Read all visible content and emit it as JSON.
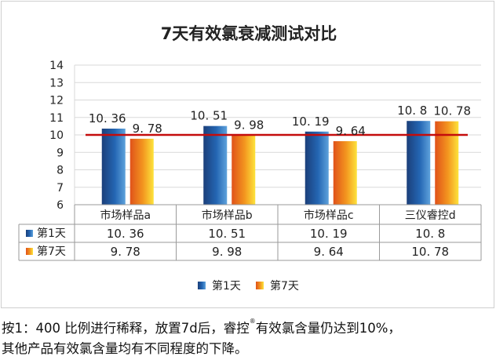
{
  "chart_data": {
    "type": "bar",
    "title": "7天有效氯衰减测试对比",
    "categories": [
      "市场样品a",
      "市场样品b",
      "市场样品c",
      "三仪睿控d"
    ],
    "series": [
      {
        "name": "第1天",
        "values": [
          10.36,
          10.51,
          10.19,
          10.8
        ],
        "labels": [
          "10. 36",
          "10. 51",
          "10. 19",
          "10. 8"
        ]
      },
      {
        "name": "第7天",
        "values": [
          9.78,
          9.98,
          9.64,
          10.78
        ],
        "labels": [
          "9. 78",
          "9. 98",
          "9. 64",
          "10. 78"
        ]
      }
    ],
    "ylim": [
      6,
      14
    ],
    "yticks": [
      "6",
      "7",
      "8",
      "9",
      "10",
      "11",
      "12",
      "13",
      "14"
    ],
    "reference_line": 10,
    "grid": true,
    "legend_position": "bottom",
    "data_table": true
  },
  "colors": {
    "series1": "#1f5fa6",
    "series2": "#f07f1b",
    "reference_line": "#c40c0c"
  },
  "footnote": {
    "line1_pre": "按1：400 比例进行稀释，放置7d后，睿控",
    "line1_sup": "®",
    "line1_post": "有效氯含量仍达到10%，",
    "line2": "其他产品有效氯含量均有不同程度的下降。"
  }
}
